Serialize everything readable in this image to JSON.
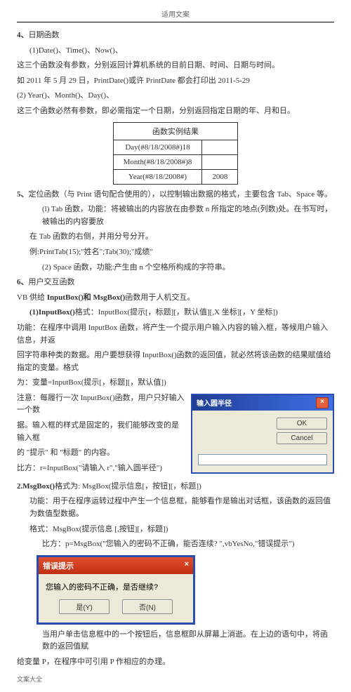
{
  "header": "适用文案",
  "sec4": {
    "num": "4、",
    "title": "日期函数",
    "p1": "(1)Date()、Time()、Now()、",
    "p2": "这三个函数没有参数，分别返回计算机系统的目前日期、时间、日期与时间。",
    "p3": "如 2011 年 5 月 29 日，PrintDate()或许 PrintDate 都会打印出 2011-5-29",
    "p4": "(2)    Year()、Month()、Day()、",
    "p5": "这三个函数必然有参数，即必需指定一个日期，分别返回指定日期的年、月和日。"
  },
  "table": {
    "header": "函数实例结果",
    "rows": [
      [
        "Day(#8/18/2008#)18",
        ""
      ],
      [
        "Month(#8/18/2008#)8",
        ""
      ],
      [
        "Year(#8/18/2008#)",
        "2008"
      ]
    ]
  },
  "sec5": {
    "num": "5、",
    "title": "定位函数（与 Print 语句配合使用的），以控制输出数据的格式，主要包含 Tab、Space 等。",
    "l1": "(l) Tab 函数，功能：将被输出的内容放在由参数 n 所指定的地点(列数)处。在书写时，被输出的内容要放",
    "l2": "在 Tab 函数的右侧，并用分号分开。",
    "l3": "例:PrintTab(15);\"姓名\";Tab(30);\"成绩\"",
    "l4": "(2) Space 函数，功能:产生由 n 个空格所构成的字符串。"
  },
  "sec6": {
    "num": "6、",
    "title": "用户交互函数",
    "vb_line": "VB 供给 ",
    "vb_fn": "InputBox()和 MsgBox()",
    "vb_tail": "函数用于人机交互。",
    "ib_head": "(1)InputBox()",
    "ib_fmt": "格式：InputBox(提示[，标题][，默认值][,X 坐标][，Y 坐标])",
    "ib_p1": "功能：在程序中调用 InputBox 函数，将产生一个提示用户输入内容的输入框，等候用户输入信息，并返",
    "ib_p2": "回字符串种类的数据。用户要想获得 InputBox()函数的返回值，就必然将该函数的结果赋值给指定的变量。格式",
    "ib_p3": "为：变量=InputBox(提示[，标题][，默认值])",
    "ib_note1": "注意：每履行一次 InputBox()函数，用户只好输入一个数",
    "ib_note2": "据。输入框的样式是固定的，我们能够改变的是输入框",
    "ib_note3": "的 \"提示\" 和 \"标题\" 的内容。",
    "ib_ex": "比方：r=InputBox(\"请输入 r\",\"输入圆半径\")"
  },
  "inputbox": {
    "title": "输入圆半径",
    "ok": "OK",
    "cancel": "Cancel"
  },
  "msgbox": {
    "head": "2.MsgBox()",
    "fmt": "格式为: MsgBox(提示信息[，按钮][，标题])",
    "p1": "功能：用于在程序运转过程中产生一个信息框，能够看作是输出对话框，该函数的返回值为数值型数据。",
    "p2": "格式：MsgBox(提示信息 [,按钮][，标题])",
    "p3": "比方：p=MsgBox(\"您输入的密码不正确，能否连续? \",vbYesNo,\"错误提示\")"
  },
  "errbox": {
    "title": "错误提示",
    "msg": "您输入的密码不正确，是否继续?",
    "yes": "是(Y)",
    "no": "否(N)"
  },
  "tail": {
    "p1": "当用户单击信息框中的一个按钮后，信息框即从屏幕上消逝。在上边的语句中，将函数的返回值赋",
    "p2": "给变量 P，在程序中可引用 P 作相应的办理。"
  },
  "footer": "文案大全"
}
